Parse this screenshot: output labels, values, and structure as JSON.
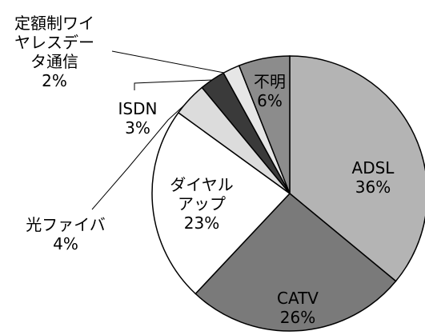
{
  "chart_data": {
    "type": "pie",
    "categories": [
      "ADSL",
      "CATV",
      "ダイヤルアップ",
      "光ファイバ",
      "ISDN",
      "定額制ワイヤレスデータ通信",
      "不明"
    ],
    "values": [
      36,
      26,
      23,
      4,
      3,
      2,
      6
    ],
    "value_labels": [
      "36%",
      "26%",
      "23%",
      "4%",
      "3%",
      "2%",
      "6%"
    ],
    "colors": [
      "#b4b4b4",
      "#7a7a7a",
      "#ffffff",
      "#dcdcdc",
      "#3a3a3a",
      "#e6e6e6",
      "#8c8c8c"
    ]
  }
}
